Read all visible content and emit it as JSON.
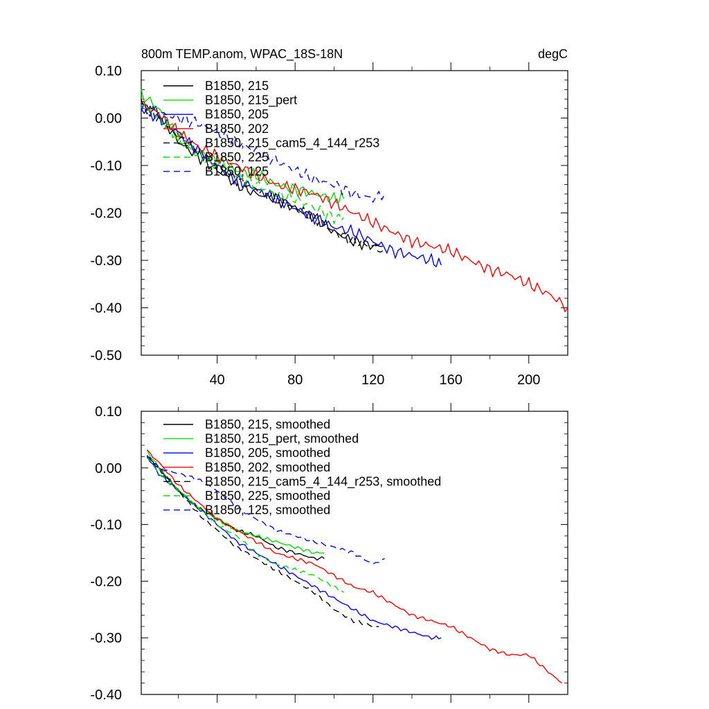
{
  "figure": {
    "title_left": "800m TEMP.anom, WPAC_18S-18N",
    "title_right": "degC"
  },
  "chart_data": [
    {
      "type": "line",
      "id": "raw",
      "title": "800m TEMP.anom, WPAC_18S-18N",
      "units": "degC",
      "xlim": [
        1,
        220
      ],
      "ylim": [
        -0.5,
        0.1
      ],
      "xticks": [
        40,
        80,
        120,
        160,
        200
      ],
      "xtick_labels": [
        "40",
        "80",
        "120",
        "160",
        "200"
      ],
      "yticks": [
        0.1,
        0.0,
        -0.1,
        -0.2,
        -0.3,
        -0.4,
        -0.5
      ],
      "ytick_labels": [
        "0.10",
        "0.00",
        "-0.10",
        "-0.20",
        "-0.30",
        "-0.40",
        "-0.50"
      ],
      "grid": false,
      "legend_position": "top-left",
      "series": [
        {
          "name": "B1850, 215",
          "color": "#000000",
          "dash": "solid",
          "x": [
            1,
            10,
            20,
            30,
            40,
            50,
            60,
            70,
            80,
            90,
            100,
            110,
            120,
            125
          ],
          "y": [
            0.03,
            0.01,
            -0.05,
            -0.08,
            -0.11,
            -0.14,
            -0.16,
            -0.17,
            -0.19,
            -0.21,
            -0.24,
            -0.26,
            -0.27,
            -0.27
          ]
        },
        {
          "name": "B1850, 215_pert",
          "color": "#00e000",
          "dash": "solid",
          "x": [
            1,
            10,
            20,
            30,
            40,
            50,
            60,
            70,
            80,
            90,
            100,
            105
          ],
          "y": [
            0.05,
            0.02,
            -0.04,
            -0.07,
            -0.09,
            -0.11,
            -0.12,
            -0.14,
            -0.15,
            -0.16,
            -0.17,
            -0.17
          ]
        },
        {
          "name": "B1850, 205",
          "color": "#0000ff",
          "dash": "solid",
          "x": [
            1,
            10,
            20,
            30,
            40,
            50,
            60,
            70,
            80,
            90,
            100,
            110,
            120,
            130,
            140,
            150,
            155
          ],
          "y": [
            0.02,
            0.0,
            -0.03,
            -0.07,
            -0.1,
            -0.13,
            -0.15,
            -0.17,
            -0.19,
            -0.21,
            -0.23,
            -0.24,
            -0.26,
            -0.28,
            -0.29,
            -0.3,
            -0.31
          ]
        },
        {
          "name": "B1850, 202",
          "color": "#ff0000",
          "dash": "solid",
          "x": [
            1,
            10,
            20,
            30,
            40,
            50,
            60,
            70,
            80,
            90,
            100,
            110,
            120,
            130,
            140,
            150,
            160,
            170,
            180,
            190,
            200,
            210,
            220
          ],
          "y": [
            0.03,
            0.01,
            -0.03,
            -0.06,
            -0.08,
            -0.1,
            -0.12,
            -0.14,
            -0.15,
            -0.16,
            -0.18,
            -0.2,
            -0.22,
            -0.24,
            -0.26,
            -0.27,
            -0.28,
            -0.3,
            -0.32,
            -0.33,
            -0.35,
            -0.37,
            -0.4
          ]
        },
        {
          "name": "B1850, 215_cam5_4_144_r253",
          "color": "#000000",
          "dash": "dashed",
          "x": [
            1,
            10,
            20,
            30,
            40,
            50,
            60,
            70,
            80,
            90,
            100,
            110,
            120,
            125
          ],
          "y": [
            0.03,
            0.0,
            -0.04,
            -0.07,
            -0.1,
            -0.13,
            -0.15,
            -0.17,
            -0.19,
            -0.21,
            -0.24,
            -0.26,
            -0.27,
            -0.28
          ]
        },
        {
          "name": "B1850, 225",
          "color": "#00e000",
          "dash": "dashed",
          "x": [
            1,
            10,
            20,
            30,
            40,
            50,
            60,
            70,
            80,
            90,
            100,
            105
          ],
          "y": [
            0.03,
            0.0,
            -0.04,
            -0.08,
            -0.1,
            -0.12,
            -0.14,
            -0.16,
            -0.17,
            -0.19,
            -0.21,
            -0.21
          ]
        },
        {
          "name": "B1850, 125",
          "color": "#0000ff",
          "dash": "dashed",
          "x": [
            1,
            10,
            20,
            30,
            40,
            50,
            60,
            70,
            80,
            90,
            100,
            110,
            120,
            126
          ],
          "y": [
            0.02,
            0.01,
            0.0,
            -0.01,
            -0.03,
            -0.05,
            -0.07,
            -0.09,
            -0.11,
            -0.13,
            -0.14,
            -0.16,
            -0.17,
            -0.16
          ]
        }
      ]
    },
    {
      "type": "line",
      "id": "smoothed",
      "xlim": [
        1,
        220
      ],
      "ylim": [
        -0.4,
        0.1
      ],
      "xticks": [
        40,
        80,
        120,
        160,
        200
      ],
      "yticks": [
        0.1,
        0.0,
        -0.1,
        -0.2,
        -0.3,
        -0.4
      ],
      "ytick_labels": [
        "0.10",
        "0.00",
        "-0.10",
        "-0.20",
        "-0.30",
        "-0.40"
      ],
      "grid": false,
      "legend_position": "top-left",
      "series": [
        {
          "name": "B1850, 215, smoothed",
          "color": "#000000",
          "dash": "solid",
          "x": [
            4,
            10,
            20,
            30,
            40,
            50,
            60,
            70,
            80,
            90,
            95
          ],
          "y": [
            0.02,
            0.0,
            -0.04,
            -0.07,
            -0.09,
            -0.11,
            -0.12,
            -0.14,
            -0.15,
            -0.16,
            -0.16
          ]
        },
        {
          "name": "B1850, 215_pert, smoothed",
          "color": "#00e000",
          "dash": "solid",
          "x": [
            4,
            10,
            20,
            30,
            40,
            50,
            60,
            70,
            80,
            90,
            95
          ],
          "y": [
            0.03,
            0.0,
            -0.04,
            -0.07,
            -0.09,
            -0.11,
            -0.12,
            -0.13,
            -0.14,
            -0.15,
            -0.15
          ]
        },
        {
          "name": "B1850, 205, smoothed",
          "color": "#0000ff",
          "dash": "solid",
          "x": [
            4,
            10,
            20,
            30,
            40,
            50,
            60,
            70,
            80,
            90,
            100,
            110,
            120,
            130,
            140,
            150,
            155
          ],
          "y": [
            0.02,
            -0.01,
            -0.04,
            -0.07,
            -0.1,
            -0.13,
            -0.15,
            -0.17,
            -0.19,
            -0.21,
            -0.23,
            -0.25,
            -0.27,
            -0.28,
            -0.29,
            -0.3,
            -0.3
          ]
        },
        {
          "name": "B1850, 202, smoothed",
          "color": "#ff0000",
          "dash": "solid",
          "x": [
            4,
            10,
            20,
            30,
            40,
            50,
            60,
            70,
            80,
            90,
            100,
            110,
            120,
            130,
            140,
            150,
            160,
            170,
            180,
            190,
            200,
            210,
            217
          ],
          "y": [
            0.03,
            0.01,
            -0.03,
            -0.06,
            -0.09,
            -0.11,
            -0.13,
            -0.15,
            -0.16,
            -0.17,
            -0.19,
            -0.21,
            -0.22,
            -0.24,
            -0.26,
            -0.27,
            -0.28,
            -0.3,
            -0.32,
            -0.33,
            -0.33,
            -0.36,
            -0.38
          ]
        },
        {
          "name": "B1850, 215_cam5_4_144_r253, smoothed",
          "color": "#000000",
          "dash": "dashed",
          "x": [
            4,
            10,
            20,
            30,
            40,
            50,
            60,
            70,
            80,
            90,
            100,
            110,
            120,
            123
          ],
          "y": [
            0.02,
            0.0,
            -0.04,
            -0.08,
            -0.11,
            -0.14,
            -0.16,
            -0.18,
            -0.2,
            -0.22,
            -0.25,
            -0.27,
            -0.28,
            -0.28
          ]
        },
        {
          "name": "B1850, 225, smoothed",
          "color": "#00e000",
          "dash": "dashed",
          "x": [
            4,
            10,
            20,
            30,
            40,
            50,
            60,
            70,
            80,
            90,
            100,
            105
          ],
          "y": [
            0.02,
            -0.01,
            -0.04,
            -0.07,
            -0.1,
            -0.12,
            -0.15,
            -0.17,
            -0.18,
            -0.19,
            -0.21,
            -0.22
          ]
        },
        {
          "name": "B1850, 125, smoothed",
          "color": "#0000ff",
          "dash": "dashed",
          "x": [
            4,
            10,
            20,
            30,
            40,
            50,
            60,
            70,
            80,
            90,
            100,
            110,
            120,
            126
          ],
          "y": [
            0.02,
            0.0,
            -0.01,
            -0.02,
            -0.04,
            -0.07,
            -0.09,
            -0.11,
            -0.12,
            -0.13,
            -0.14,
            -0.15,
            -0.17,
            -0.16
          ]
        }
      ]
    }
  ]
}
